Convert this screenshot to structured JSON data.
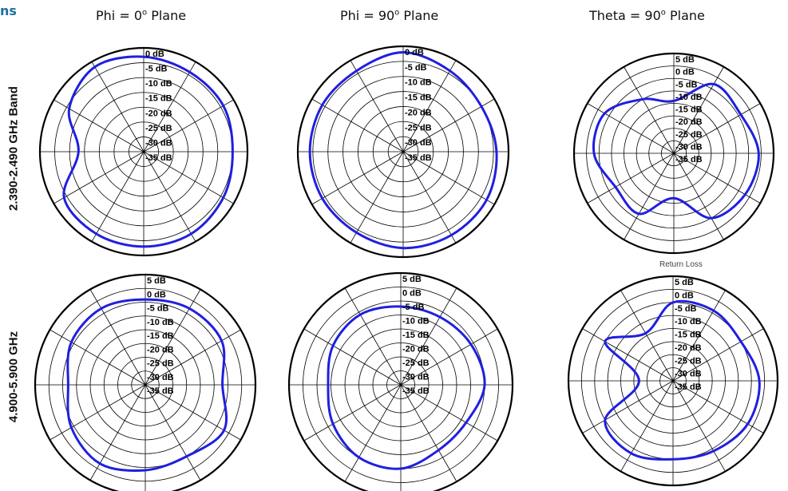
{
  "header": {
    "corner_label": "ns"
  },
  "columns": [
    {
      "title": "Phi = 0",
      "sup": "o",
      "suffix": " Plane"
    },
    {
      "title": "Phi = 90",
      "sup": "o",
      "suffix": " Plane"
    },
    {
      "title": "Theta = 90",
      "sup": "o",
      "suffix": " Plane"
    }
  ],
  "rows": [
    {
      "label": "2.390-2.490 GHz Band"
    },
    {
      "label": "4.900-5.900 GHz"
    }
  ],
  "footnote": "Return Loss",
  "colors": {
    "trace": "#1f1fe0",
    "grid": "#000000",
    "corner": "#1a6f9e"
  },
  "chart_data": [
    {
      "type": "polar",
      "row": 0,
      "col": 0,
      "unit": "dB",
      "rlim": [
        -35,
        0
      ],
      "ticks": [
        "0 dB",
        "-5 dB",
        "-10 dB",
        "-15 dB",
        "-20 dB",
        "-25 dB",
        "-30 dB",
        "-35 dB"
      ],
      "angles_deg": [
        0,
        30,
        60,
        90,
        120,
        150,
        180,
        210,
        240,
        270,
        300,
        330
      ],
      "gain_db": [
        -3,
        -4,
        -4,
        -5,
        -4,
        -3,
        -3,
        -3,
        -4,
        -13,
        -6,
        -2
      ]
    },
    {
      "type": "polar",
      "row": 0,
      "col": 1,
      "unit": "dB",
      "rlim": [
        -35,
        0
      ],
      "ticks": [
        "0 dB",
        "-5 dB",
        "-10 dB",
        "-15 dB",
        "-20 dB",
        "-25 dB",
        "-30 dB",
        "-35 dB"
      ],
      "angles_deg": [
        0,
        30,
        60,
        90,
        120,
        150,
        180,
        210,
        240,
        270,
        300,
        330
      ],
      "gain_db": [
        -2,
        -4,
        -5,
        -4,
        -3,
        -3,
        -3,
        -4,
        -4,
        -4,
        -4,
        -4
      ]
    },
    {
      "type": "polar",
      "row": 0,
      "col": 2,
      "unit": "dB",
      "rlim": [
        -35,
        5
      ],
      "ticks": [
        "5 dB",
        "0 dB",
        "-5 dB",
        "-10 dB",
        "-15 dB",
        "-20 dB",
        "-25 dB",
        "-30 dB",
        "-35 dB"
      ],
      "angles_deg": [
        0,
        30,
        60,
        90,
        120,
        150,
        180,
        210,
        240,
        270,
        300,
        330
      ],
      "gain_db": [
        -14,
        -3,
        -4,
        -1,
        -2,
        -5,
        -17,
        -7,
        -8,
        -3,
        -3,
        -10
      ]
    },
    {
      "type": "polar",
      "row": 1,
      "col": 0,
      "unit": "dB",
      "rlim": [
        -35,
        5
      ],
      "ticks": [
        "5 dB",
        "0 dB",
        "-5 dB",
        "-10 dB",
        "-15 dB",
        "-20 dB",
        "-25 dB",
        "-30 dB",
        "-35 dB"
      ],
      "angles_deg": [
        0,
        30,
        60,
        90,
        120,
        150,
        180,
        210,
        240,
        270,
        300,
        330
      ],
      "gain_db": [
        -4,
        -3,
        -3,
        -7,
        -2,
        -5,
        -4,
        -2,
        -4,
        -7,
        -4,
        -3
      ]
    },
    {
      "type": "polar",
      "row": 1,
      "col": 1,
      "unit": "dB",
      "rlim": [
        -35,
        5
      ],
      "ticks": [
        "5 dB",
        "0 dB",
        "-5 dB",
        "-10 dB",
        "-15 dB",
        "-20 dB",
        "-25 dB",
        "-30 dB",
        "-35 dB"
      ],
      "angles_deg": [
        0,
        30,
        60,
        90,
        120,
        150,
        180,
        210,
        240,
        270,
        300,
        330
      ],
      "gain_db": [
        -7,
        -7,
        -6,
        -5,
        -8,
        -8,
        -5,
        -5,
        -7,
        -9,
        -7,
        -6
      ]
    },
    {
      "type": "polar",
      "row": 1,
      "col": 2,
      "unit": "dB",
      "rlim": [
        -35,
        5
      ],
      "ticks": [
        "5 dB",
        "0 dB",
        "-5 dB",
        "-10 dB",
        "-15 dB",
        "-20 dB",
        "-25 dB",
        "-30 dB",
        "-35 dB"
      ],
      "angles_deg": [
        0,
        30,
        60,
        90,
        120,
        150,
        180,
        210,
        240,
        270,
        300,
        330
      ],
      "gain_db": [
        -5,
        -4,
        -5,
        -2,
        -2,
        -4,
        -5,
        -3,
        -5,
        -22,
        -5,
        -14
      ]
    }
  ]
}
